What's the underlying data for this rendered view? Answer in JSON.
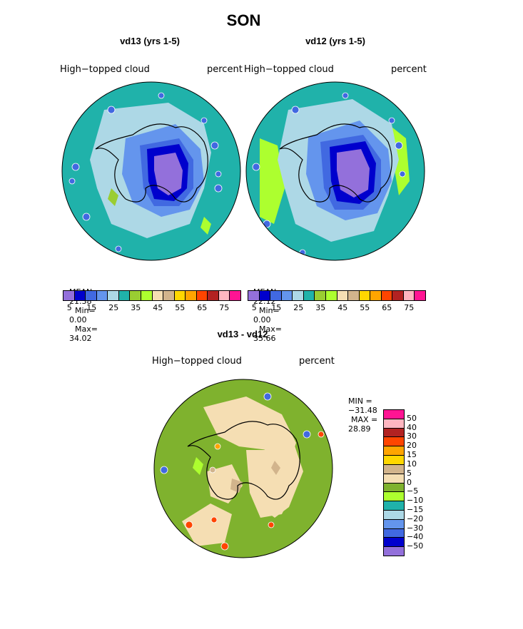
{
  "main_title": "SON",
  "panels": [
    {
      "title": "vd13 (yrs 1-5)",
      "left_label": "High−topped cloud",
      "right_label": "percent",
      "stats": {
        "mean_label": "MEAN=",
        "mean": "21.38",
        "min_label": "Min=",
        "min": "0.00",
        "max_label": "Max=",
        "max": "34.02"
      }
    },
    {
      "title": "vd12 (yrs 1-5)",
      "left_label": "High−topped cloud",
      "right_label": "percent",
      "stats": {
        "mean_label": "MEAN=",
        "mean": "22.12",
        "min_label": "Min=",
        "min": "0.00",
        "max_label": "Max=",
        "max": "35.66"
      }
    }
  ],
  "colorbar": {
    "colors": [
      "#9370db",
      "#0000cd",
      "#4169e1",
      "#6495ed",
      "#add8e6",
      "#20b2aa",
      "#9acd32",
      "#adff2f",
      "#f5deb3",
      "#d2b48c",
      "#ffd700",
      "#ffa500",
      "#ff4500",
      "#b22222",
      "#ffb6c1",
      "#ff1493"
    ],
    "labels": [
      "5",
      "15",
      "25",
      "35",
      "45",
      "55",
      "65",
      "75"
    ]
  },
  "diff": {
    "title": "vd13 - vd12",
    "left_label": "High−topped cloud",
    "right_label": "percent",
    "minmax": {
      "min_label": "MIN =",
      "min": "−31.48",
      "max_label": "MAX =",
      "max": "28.89"
    },
    "colorbar": {
      "colors": [
        "#ff1493",
        "#ffb6c1",
        "#b22222",
        "#ff4500",
        "#ffa500",
        "#ffd700",
        "#d2b48c",
        "#f5deb3",
        "#7fb22e",
        "#adff2f",
        "#20b2aa",
        "#add8e6",
        "#6495ed",
        "#4169e1",
        "#0000cd",
        "#9370db"
      ],
      "labels": [
        "50",
        "40",
        "30",
        "20",
        "15",
        "10",
        "5",
        "0",
        "−5",
        "−10",
        "−15",
        "−20",
        "−30",
        "−40",
        "−50"
      ]
    }
  }
}
